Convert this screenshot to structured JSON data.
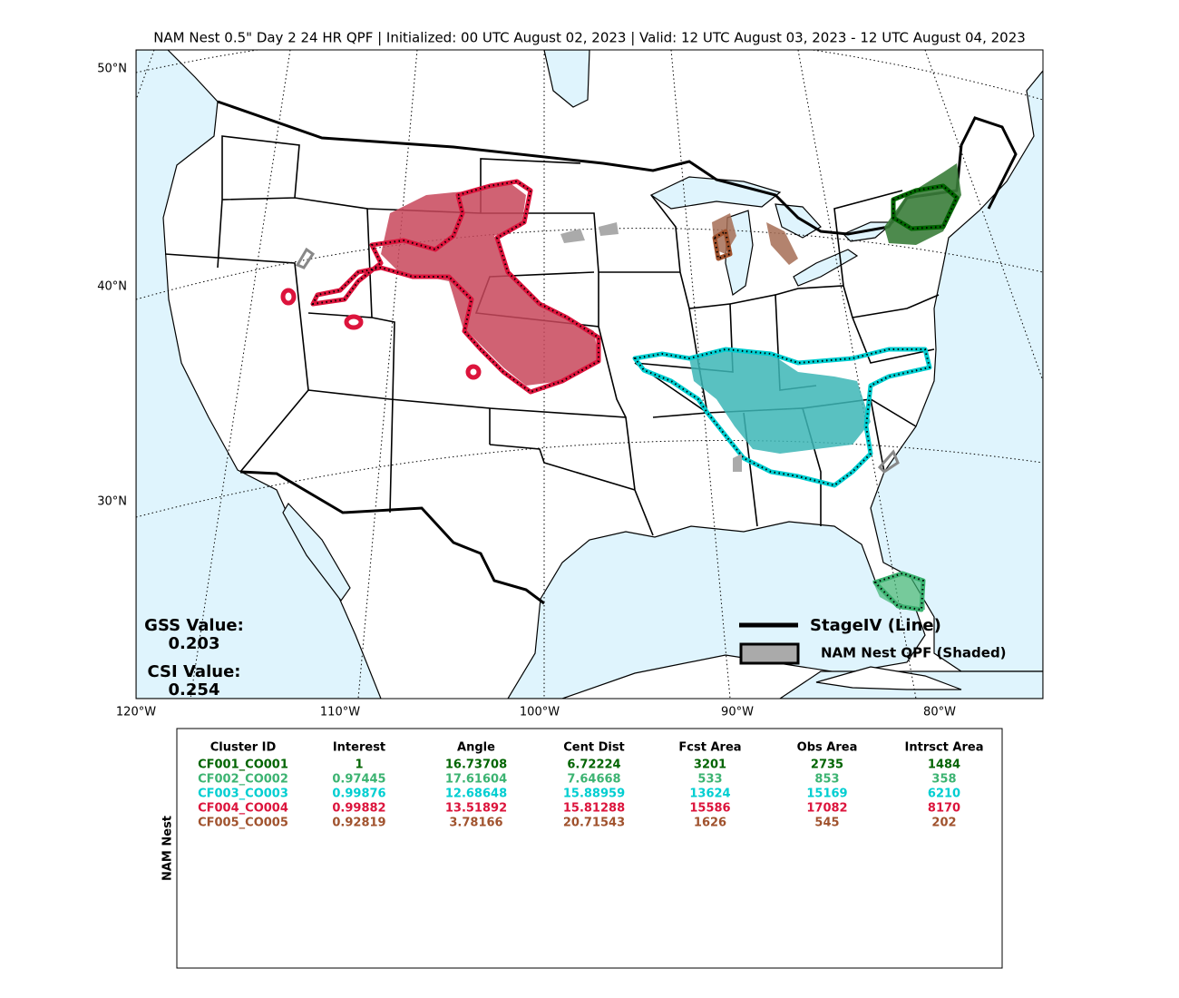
{
  "title": "NAM Nest 0.5\" Day 2 24 HR QPF | Initialized: 00 UTC August 02, 2023 | Valid: 12 UTC August 03, 2023 - 12 UTC August 04, 2023",
  "map": {
    "lat_labels": [
      "50°N",
      "40°N",
      "30°N"
    ],
    "lon_labels": [
      "120°W",
      "110°W",
      "100°W",
      "90°W",
      "80°W"
    ],
    "scores": [
      {
        "label": "GSS Value:",
        "value": "0.203"
      },
      {
        "label": "CSI Value:",
        "value": "0.254"
      }
    ],
    "legend": [
      "StageIV (Line)",
      "NAM Nest QPF (Shaded)"
    ]
  },
  "table": {
    "side_label": "NAM Nest",
    "header": [
      "Cluster ID",
      "Interest",
      "Angle",
      "Cent Dist",
      "Fcst Area",
      "Obs Area",
      "Intrsct Area"
    ],
    "rows": [
      {
        "color": "#006400",
        "cells": [
          "CF001_CO001",
          "1",
          "16.73708",
          "6.72224",
          "3201",
          "2735",
          "1484"
        ]
      },
      {
        "color": "#3cb371",
        "cells": [
          "CF002_CO002",
          "0.97445",
          "17.61604",
          "7.64668",
          "533",
          "853",
          "358"
        ]
      },
      {
        "color": "#00ced1",
        "cells": [
          "CF003_CO003",
          "0.99876",
          "12.68648",
          "15.88959",
          "13624",
          "15169",
          "6210"
        ]
      },
      {
        "color": "#dc143c",
        "cells": [
          "CF004_CO004",
          "0.99882",
          "13.51892",
          "15.81288",
          "15586",
          "17082",
          "8170"
        ]
      },
      {
        "color": "#a0522d",
        "cells": [
          "CF005_CO005",
          "0.92819",
          "3.78166",
          "20.71543",
          "1626",
          "545",
          "202"
        ]
      }
    ]
  }
}
